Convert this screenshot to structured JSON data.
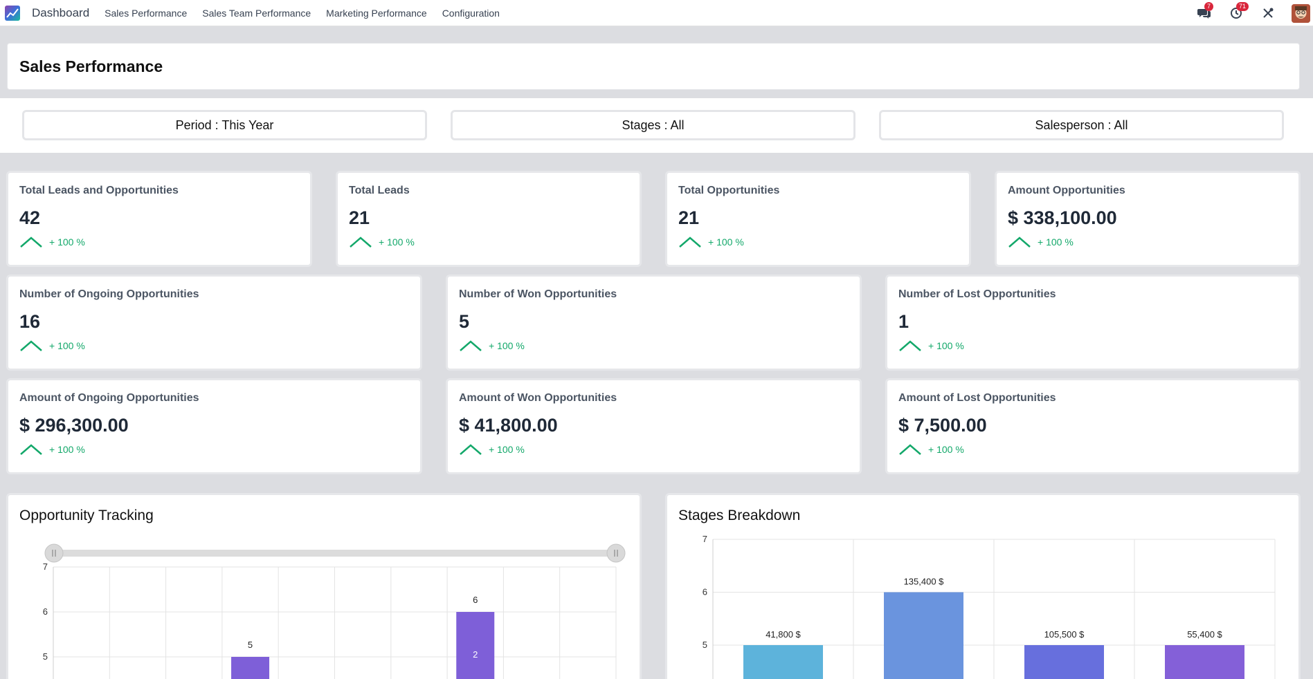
{
  "nav": {
    "app_name": "Dashboard",
    "items": [
      "Sales Performance",
      "Sales Team Performance",
      "Marketing Performance",
      "Configuration"
    ],
    "messages_count": "7",
    "activities_count": "71"
  },
  "page": {
    "title": "Sales Performance"
  },
  "filters": {
    "period": "Period : This Year",
    "stages": "Stages : All",
    "salesperson": "Salesperson : All"
  },
  "kpis": [
    {
      "label": "Total Leads and Opportunities",
      "value": "42",
      "trend": "+ 100 %"
    },
    {
      "label": "Total Leads",
      "value": "21",
      "trend": "+ 100 %"
    },
    {
      "label": "Total Opportunities",
      "value": "21",
      "trend": "+ 100 %"
    },
    {
      "label": "Amount Opportunities",
      "value": "$ 338,100.00",
      "trend": "+ 100 %"
    },
    {
      "label": "Number of Ongoing Opportunities",
      "value": "16",
      "trend": "+ 100 %"
    },
    {
      "label": "Number of Won Opportunities",
      "value": "5",
      "trend": "+ 100 %"
    },
    {
      "label": "Number of Lost Opportunities",
      "value": "1",
      "trend": "+ 100 %"
    },
    {
      "label": "Amount of Ongoing Opportunities",
      "value": "$ 296,300.00",
      "trend": "+ 100 %"
    },
    {
      "label": "Amount of Won Opportunities",
      "value": "$ 41,800.00",
      "trend": "+ 100 %"
    },
    {
      "label": "Amount of Lost Opportunities",
      "value": "$ 7,500.00",
      "trend": "+ 100 %"
    }
  ],
  "colors": {
    "trend_up": "#13a86a",
    "bar_purple": "#7e5fd8",
    "accent_badge": "#d9263b"
  },
  "chart_data": [
    {
      "type": "bar",
      "title": "Opportunity Tracking",
      "yticks": [
        "7",
        "6",
        "5"
      ],
      "ylim_visible": [
        4.6,
        7
      ],
      "bars": [
        {
          "slot": 3,
          "value": 5,
          "label": "5",
          "inner_label": ""
        },
        {
          "slot": 7,
          "value": 6,
          "label": "6",
          "inner_label": "2"
        }
      ],
      "slots": 10,
      "color": "#7e5fd8"
    },
    {
      "type": "bar",
      "title": "Stages Breakdown",
      "yticks": [
        "7",
        "6",
        "5"
      ],
      "ylim_visible": [
        4.3,
        7
      ],
      "bars": [
        {
          "value": 5,
          "label": "41,800 $",
          "color": "#5db3db"
        },
        {
          "value": 6,
          "label": "135,400 $",
          "color": "#6a94de"
        },
        {
          "value": 5,
          "label": "105,500 $",
          "color": "#676fdd"
        },
        {
          "value": 5,
          "label": "55,400 $",
          "color": "#8460d8"
        }
      ]
    }
  ]
}
